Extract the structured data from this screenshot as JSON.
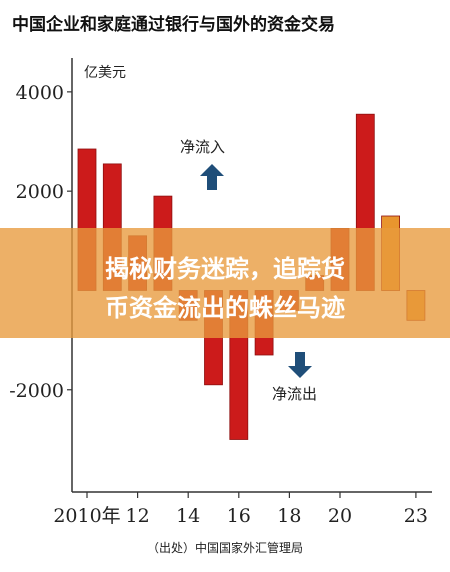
{
  "chart_data": {
    "type": "bar",
    "title": "中国企业和家庭通过银行与国外的资金交易",
    "unit_label": "亿美元",
    "source": "（出处）中国国家外汇管理局",
    "ylim": [
      -4200,
      4400
    ],
    "yticks": [
      4000,
      2000,
      -2000
    ],
    "xticks": [
      {
        "label": "2010年",
        "index": 0
      },
      {
        "label": "12",
        "index": 2
      },
      {
        "label": "14",
        "index": 4
      },
      {
        "label": "16",
        "index": 6
      },
      {
        "label": "18",
        "index": 8
      },
      {
        "label": "20",
        "index": 10
      },
      {
        "label": "23",
        "index": 13
      }
    ],
    "series": [
      {
        "values": [
          2850,
          2550,
          1100,
          1900,
          -600,
          -1900,
          -3000,
          -1300,
          -400,
          300,
          1250,
          3550,
          1500,
          -600
        ]
      }
    ],
    "bar_colors": [
      "#cc1b1b",
      "#cc1b1b",
      "#cc1b1b",
      "#cc1b1b",
      "#cc1b1b",
      "#cc1b1b",
      "#cc1b1b",
      "#cc1b1b",
      "#cc1b1b",
      "#cc1b1b",
      "#cc1b1b",
      "#cc1b1b",
      "#e8952e",
      "#e8952e"
    ],
    "annotations": {
      "inflow": "净流入",
      "outflow": "净流出"
    },
    "grid": false,
    "legend": "none"
  },
  "overlay": {
    "line1": "揭秘财务迷踪，追踪货",
    "line2": "币资金流出的蛛丝马迹"
  },
  "colors": {
    "bar": "#cc1b1b",
    "bar_stroke": "#8e0f0f",
    "arrow": "#1f4e79",
    "banner": "#e89a3c",
    "banner_text": "#ffffff",
    "axis": "#333333"
  }
}
